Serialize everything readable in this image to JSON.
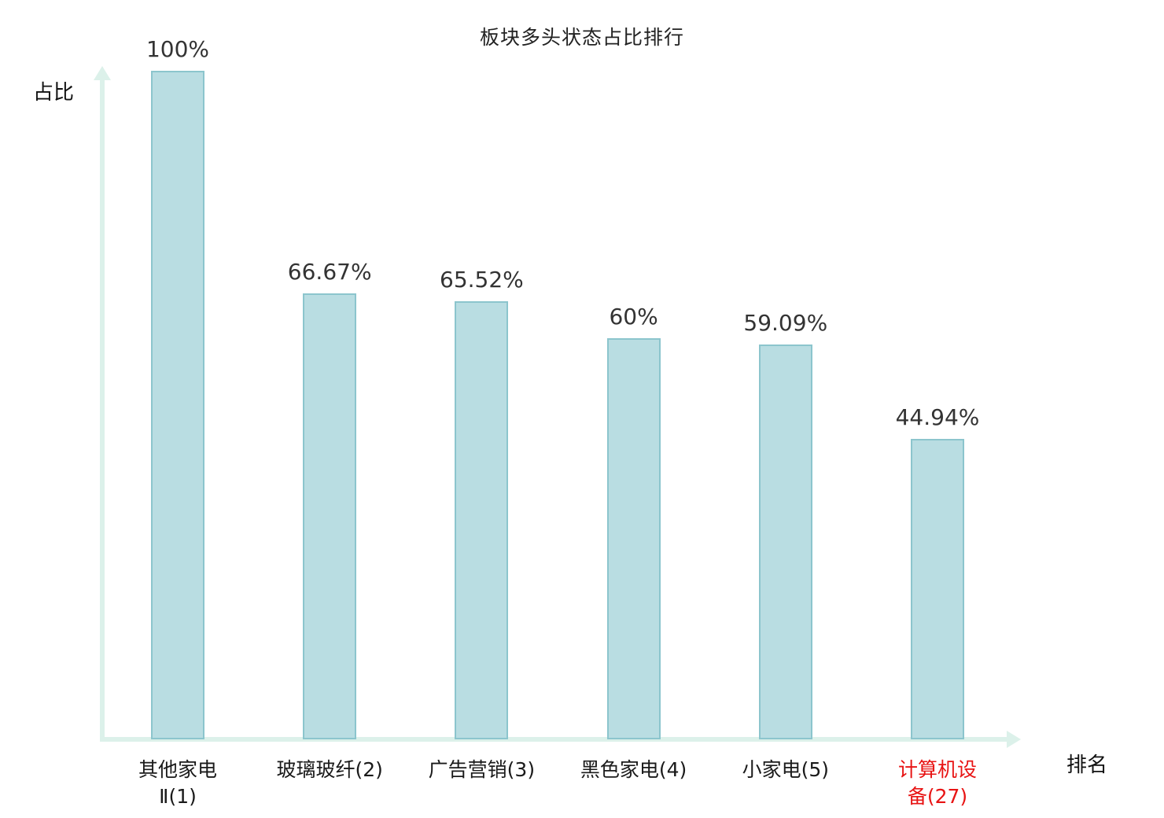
{
  "chart_data": {
    "type": "bar",
    "title": "板块多头状态占比排行",
    "ylabel": "占比",
    "xlabel": "排名",
    "categories": [
      "其他家电Ⅱ(1)",
      "玻璃玻纤(2)",
      "广告营销(3)",
      "黑色家电(4)",
      "小家电(5)",
      "计算机设备(27)"
    ],
    "category_lines": [
      [
        "其他家电",
        "Ⅱ(1)"
      ],
      [
        "玻璃玻纤(2)"
      ],
      [
        "广告营销(3)"
      ],
      [
        "黑色家电(4)"
      ],
      [
        "小家电(5)"
      ],
      [
        "计算机设",
        "备(27)"
      ]
    ],
    "values": [
      100,
      66.67,
      65.52,
      60,
      59.09,
      44.94
    ],
    "value_labels": [
      "100%",
      "66.67%",
      "65.52%",
      "60%",
      "59.09%",
      "44.94%"
    ],
    "highlight_index": 5,
    "ylim": [
      0,
      100
    ],
    "grid": false,
    "legend": "none",
    "colors": {
      "bar_fill": "#b9dde2",
      "bar_border": "#8cc5cd",
      "axis": "#dcf1ea",
      "value_text": "#333333",
      "category_text": "#1a1a1a",
      "highlight_text": "#e81414"
    }
  }
}
